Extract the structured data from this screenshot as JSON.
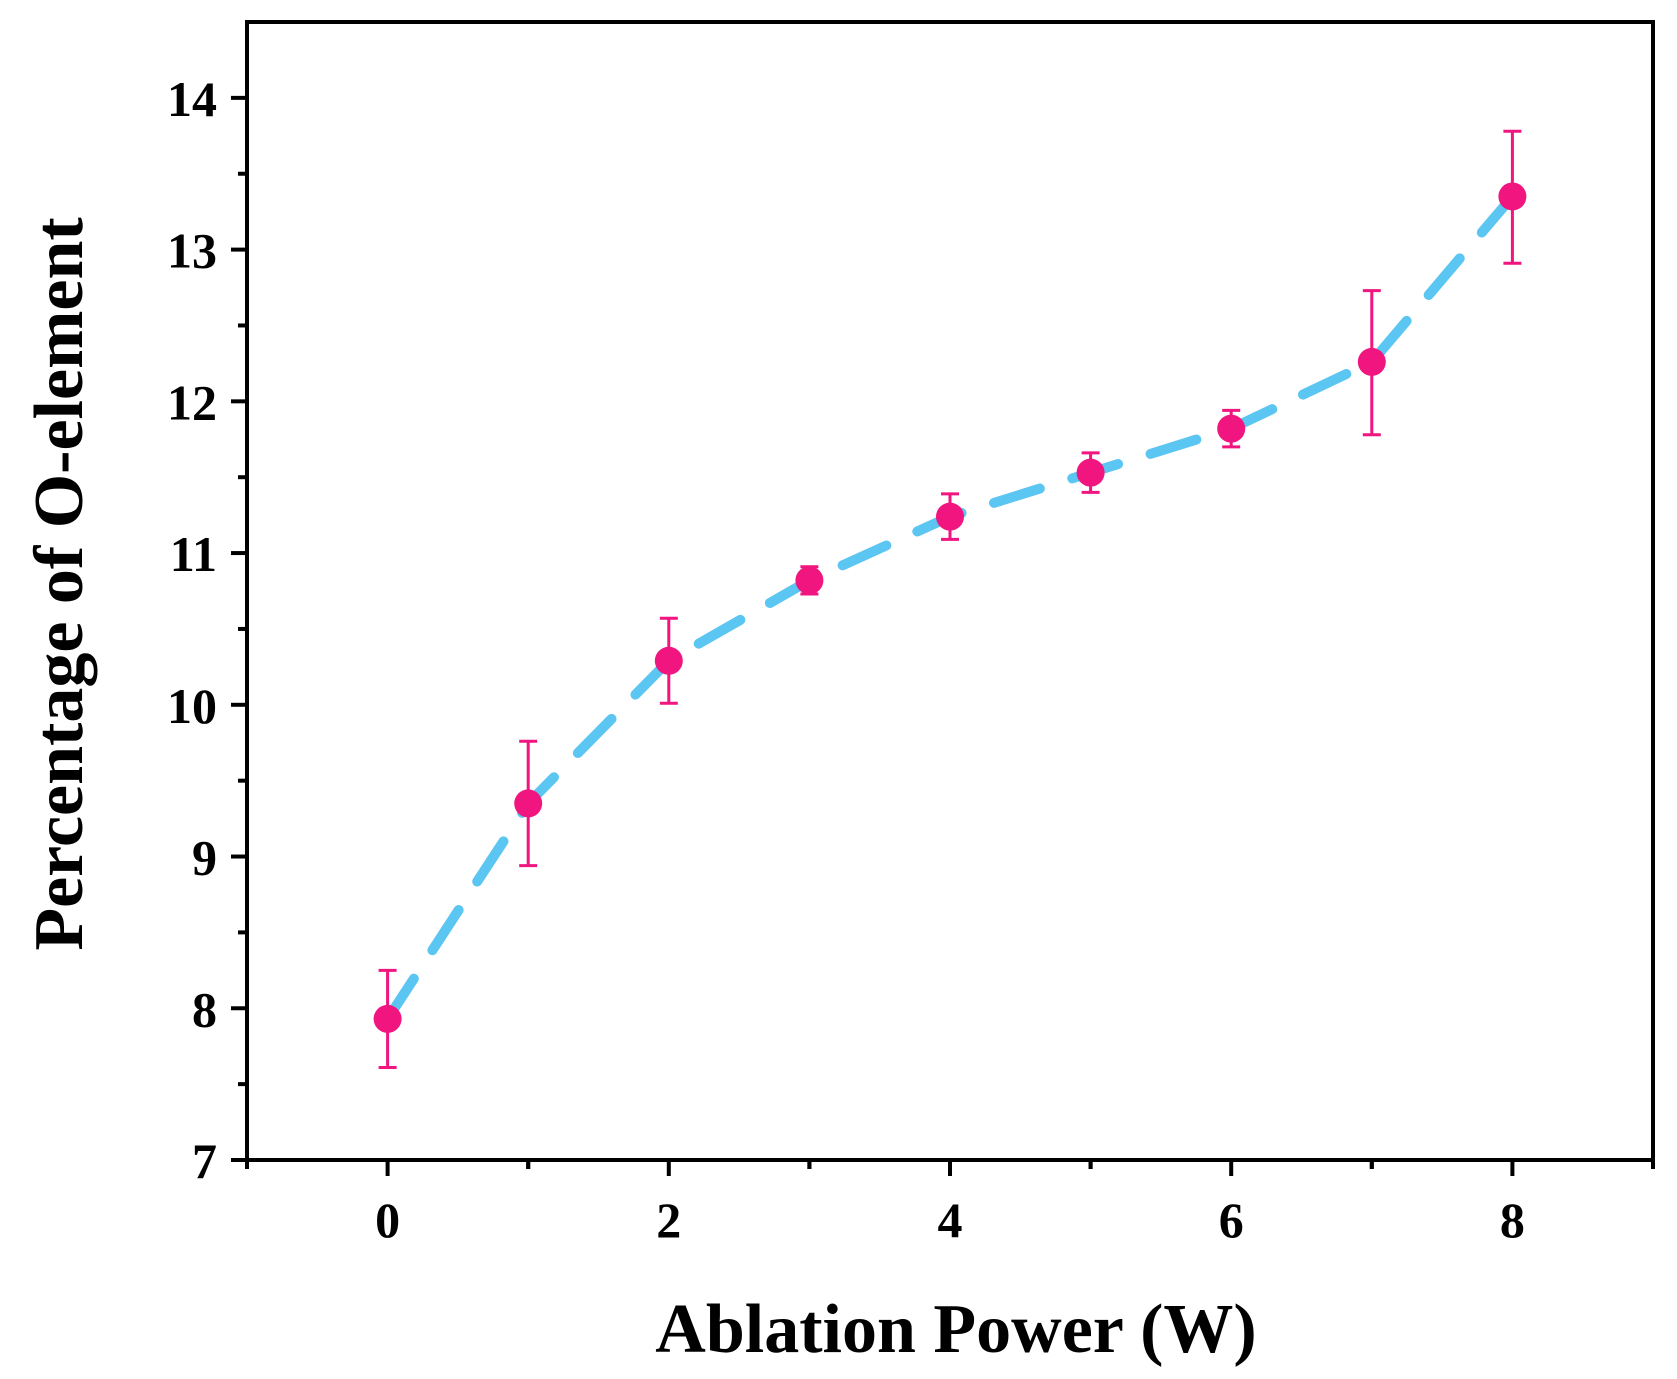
{
  "chart_data": {
    "type": "scatter",
    "xlabel": "Ablation Power (W)",
    "ylabel": "Percentage of O-element",
    "xlim": [
      -1,
      9
    ],
    "ylim": [
      7,
      14.5
    ],
    "xticks": [
      0,
      2,
      4,
      6,
      8
    ],
    "yticks": [
      7,
      8,
      9,
      10,
      11,
      12,
      13,
      14
    ],
    "grid": false,
    "series": [
      {
        "name": "O-element",
        "x": [
          0,
          1,
          2,
          3,
          4,
          5,
          6,
          7,
          8
        ],
        "y": [
          7.93,
          9.35,
          10.29,
          10.82,
          11.24,
          11.53,
          11.82,
          12.26,
          13.35
        ],
        "err_high": [
          8.25,
          9.76,
          10.57,
          10.91,
          11.39,
          11.66,
          11.94,
          12.73,
          13.78
        ],
        "err_low": [
          7.61,
          8.94,
          10.01,
          10.73,
          11.09,
          11.4,
          11.7,
          11.78,
          12.91
        ],
        "marker_color": "#f0157f",
        "fit_line_color": "#5bc6f1",
        "fit_line_style": "dashed"
      }
    ]
  }
}
